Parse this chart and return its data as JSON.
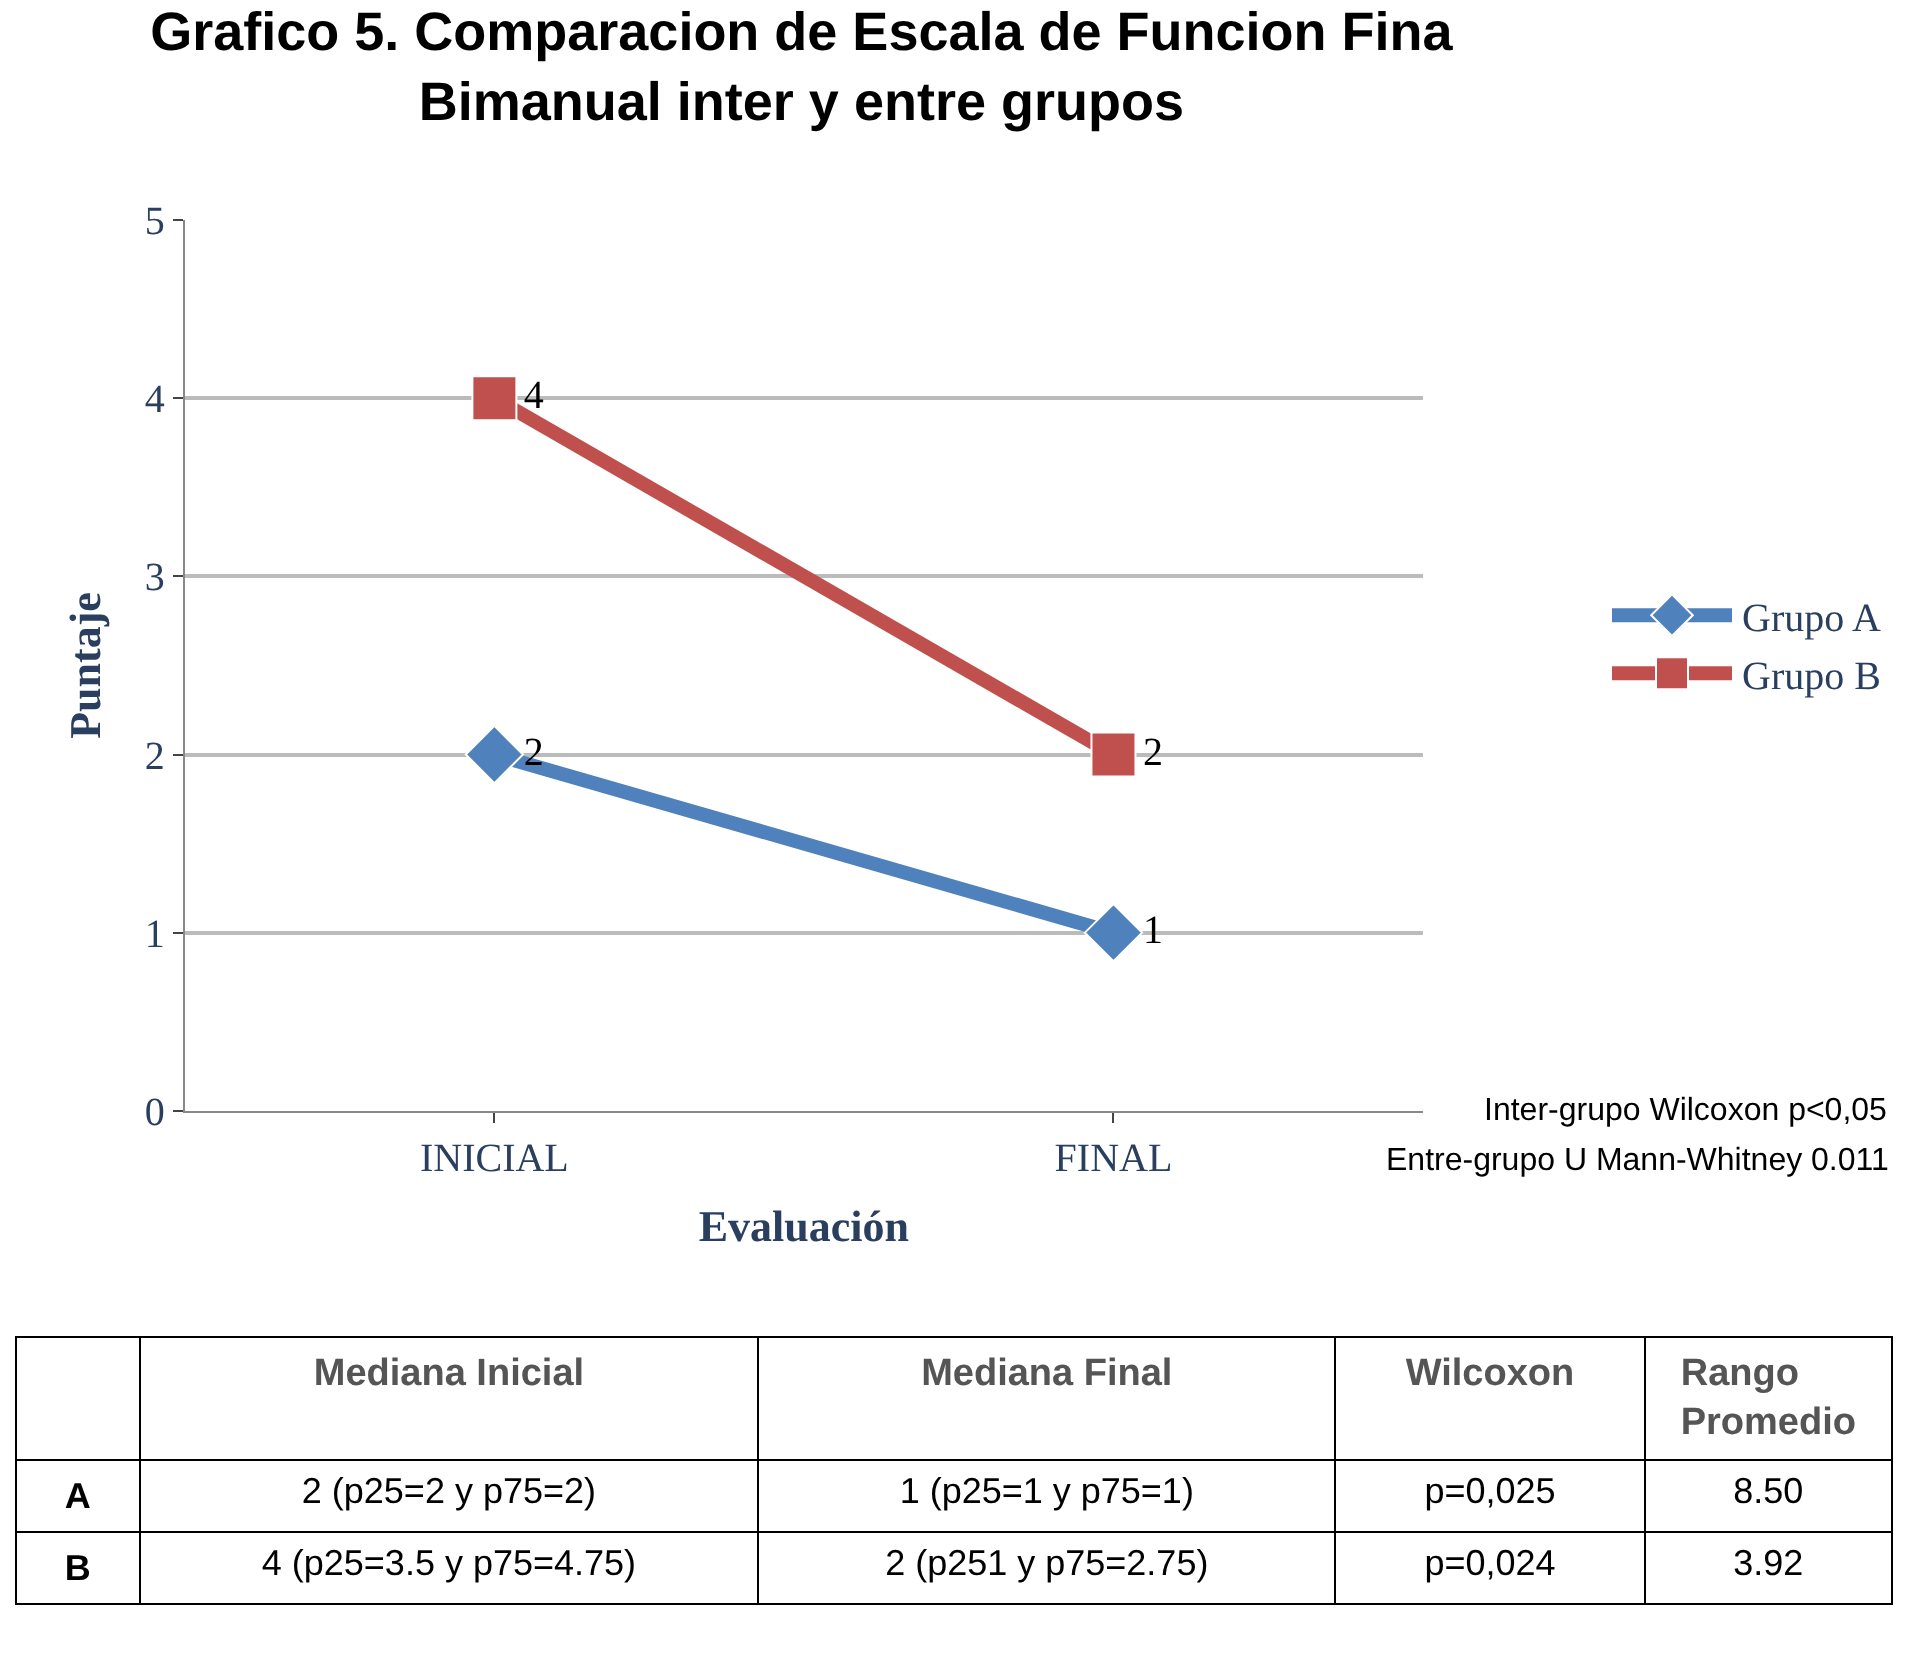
{
  "chart_data": [
    {
      "type": "line",
      "title": "Grafico 5. Comparacion de Escala de Funcion Fina\nBimanual inter y entre grupos",
      "xlabel": "Evaluación",
      "ylabel": "Puntaje",
      "categories": [
        "INICIAL",
        "FINAL"
      ],
      "series": [
        {
          "name": "Grupo A",
          "color": "#4f81bd",
          "marker": "diamond",
          "values": [
            2,
            1
          ]
        },
        {
          "name": "Grupo B",
          "color": "#c0504d",
          "marker": "square",
          "values": [
            4,
            2
          ]
        }
      ],
      "ylim": [
        0,
        5
      ],
      "yticks": [
        0,
        1,
        2,
        3,
        4,
        5
      ],
      "grid": "y",
      "legend": "right",
      "data_labels": true,
      "line_style": "solid",
      "annotations": [
        "Inter-grupo Wilcoxon p<0,05",
        "Entre-grupo U Mann-Whitney 0.011"
      ]
    },
    {
      "type": "other",
      "categories": [
        null,
        "Mediana Inicial",
        "Mediana Final",
        "Wilcoxon",
        "Rango Promedio"
      ],
      "y_categories": [
        "A",
        "B"
      ],
      "cell_labels": [
        [
          "2 (p25=2 y p75=2)",
          "1 (p25=1 y p75=1)",
          "p=0,025",
          "8.50"
        ],
        [
          "4 (p25=3.5 y p75=4.75)",
          "2 (p251 y p75=2.75)",
          "p=0,024",
          "3.92"
        ]
      ]
    }
  ]
}
